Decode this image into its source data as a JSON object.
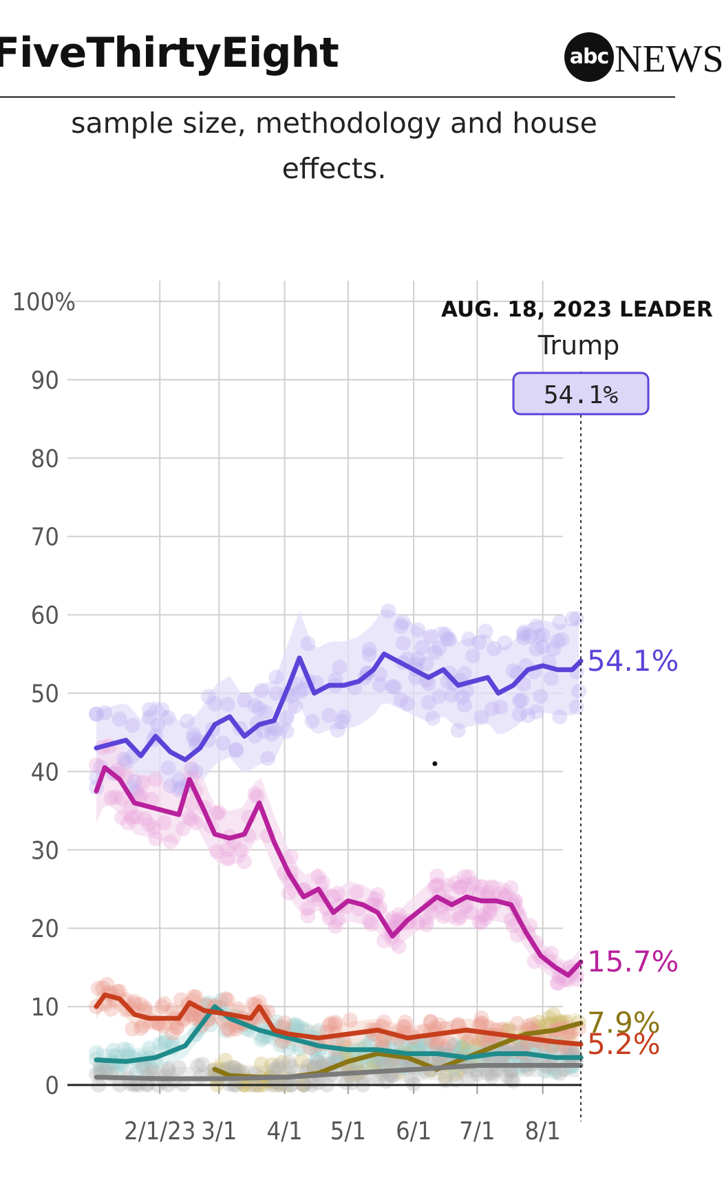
{
  "header": {
    "brand": "FiveThirtyEight",
    "logo_abc": "abc",
    "logo_news": "NEWS"
  },
  "description": {
    "line1": "sample size, methodology and house",
    "line2": "effects."
  },
  "leader": {
    "heading": "AUG. 18, 2023 LEADER",
    "name": "Trump",
    "value": "54.1%"
  },
  "chart_data": {
    "type": "line",
    "title": "",
    "xlabel": "",
    "ylabel": "",
    "x_range": [
      "2023-01-01",
      "2023-08-18"
    ],
    "ylim": [
      0,
      100
    ],
    "y_ticks": [
      {
        "value": 0,
        "label": "0"
      },
      {
        "value": 10,
        "label": "10"
      },
      {
        "value": 20,
        "label": "20"
      },
      {
        "value": 30,
        "label": "30"
      },
      {
        "value": 40,
        "label": "40"
      },
      {
        "value": 50,
        "label": "50"
      },
      {
        "value": 60,
        "label": "60"
      },
      {
        "value": 70,
        "label": "70"
      },
      {
        "value": 80,
        "label": "80"
      },
      {
        "value": 90,
        "label": "90"
      },
      {
        "value": 100,
        "label": "100%"
      }
    ],
    "x_ticks": [
      {
        "date": "2023-01-31",
        "label": "2/1/23"
      },
      {
        "date": "2023-02-28",
        "label": "3/1"
      },
      {
        "date": "2023-03-31",
        "label": "4/1"
      },
      {
        "date": "2023-04-30",
        "label": "5/1"
      },
      {
        "date": "2023-05-31",
        "label": "6/1"
      },
      {
        "date": "2023-06-30",
        "label": "7/1"
      },
      {
        "date": "2023-07-31",
        "label": "8/1"
      }
    ],
    "grid": true,
    "current_date": "2023-08-18",
    "series": [
      {
        "color": "#5b43d8",
        "band_color": "#e4dffa",
        "dot_color": "#b9aef0",
        "end_label": "54.1%",
        "points": [
          [
            "2023-01-01",
            43
          ],
          [
            "2023-01-08",
            43.5
          ],
          [
            "2023-01-15",
            44
          ],
          [
            "2023-01-22",
            42
          ],
          [
            "2023-01-29",
            44.5
          ],
          [
            "2023-02-05",
            42.5
          ],
          [
            "2023-02-12",
            41.5
          ],
          [
            "2023-02-19",
            43
          ],
          [
            "2023-02-26",
            46
          ],
          [
            "2023-03-05",
            47
          ],
          [
            "2023-03-12",
            44.5
          ],
          [
            "2023-03-19",
            46
          ],
          [
            "2023-03-26",
            46.5
          ],
          [
            "2023-04-02",
            51
          ],
          [
            "2023-04-07",
            54.5
          ],
          [
            "2023-04-14",
            50
          ],
          [
            "2023-04-21",
            51
          ],
          [
            "2023-04-28",
            51
          ],
          [
            "2023-05-05",
            51.5
          ],
          [
            "2023-05-12",
            53
          ],
          [
            "2023-05-17",
            55
          ],
          [
            "2023-05-24",
            54
          ],
          [
            "2023-05-31",
            53
          ],
          [
            "2023-06-07",
            52
          ],
          [
            "2023-06-14",
            53
          ],
          [
            "2023-06-21",
            51
          ],
          [
            "2023-06-28",
            51.5
          ],
          [
            "2023-07-05",
            52
          ],
          [
            "2023-07-10",
            50
          ],
          [
            "2023-07-17",
            51
          ],
          [
            "2023-07-24",
            53
          ],
          [
            "2023-07-31",
            53.5
          ],
          [
            "2023-08-07",
            53
          ],
          [
            "2023-08-14",
            53
          ],
          [
            "2023-08-18",
            54.1
          ]
        ]
      },
      {
        "color": "#b8219c",
        "band_color": "#f5dcef",
        "dot_color": "#eaa6dc",
        "end_label": "15.7%",
        "points": [
          [
            "2023-01-01",
            37.5
          ],
          [
            "2023-01-05",
            40.5
          ],
          [
            "2023-01-12",
            39
          ],
          [
            "2023-01-19",
            36
          ],
          [
            "2023-01-26",
            35.5
          ],
          [
            "2023-02-02",
            35
          ],
          [
            "2023-02-09",
            34.5
          ],
          [
            "2023-02-14",
            39
          ],
          [
            "2023-02-21",
            35
          ],
          [
            "2023-02-26",
            32
          ],
          [
            "2023-03-05",
            31.5
          ],
          [
            "2023-03-12",
            32
          ],
          [
            "2023-03-19",
            36
          ],
          [
            "2023-03-26",
            31
          ],
          [
            "2023-04-02",
            27
          ],
          [
            "2023-04-09",
            24
          ],
          [
            "2023-04-16",
            25
          ],
          [
            "2023-04-23",
            22
          ],
          [
            "2023-04-30",
            23.5
          ],
          [
            "2023-05-07",
            23
          ],
          [
            "2023-05-14",
            22
          ],
          [
            "2023-05-21",
            19
          ],
          [
            "2023-05-28",
            21
          ],
          [
            "2023-06-04",
            22.5
          ],
          [
            "2023-06-11",
            24
          ],
          [
            "2023-06-18",
            23
          ],
          [
            "2023-06-25",
            24
          ],
          [
            "2023-07-02",
            23.5
          ],
          [
            "2023-07-09",
            23.5
          ],
          [
            "2023-07-16",
            23
          ],
          [
            "2023-07-23",
            19.5
          ],
          [
            "2023-07-30",
            16.5
          ],
          [
            "2023-08-06",
            15
          ],
          [
            "2023-08-12",
            14
          ],
          [
            "2023-08-18",
            15.7
          ]
        ]
      },
      {
        "color": "#8a7514",
        "band_color": "#f1ecd6",
        "dot_color": "#cbb767",
        "end_label": "7.9%",
        "points": [
          [
            "2023-02-26",
            2
          ],
          [
            "2023-03-05",
            1.2
          ],
          [
            "2023-03-19",
            1
          ],
          [
            "2023-04-02",
            1
          ],
          [
            "2023-04-16",
            1.5
          ],
          [
            "2023-04-30",
            3
          ],
          [
            "2023-05-14",
            4
          ],
          [
            "2023-05-28",
            3.5
          ],
          [
            "2023-06-11",
            2
          ],
          [
            "2023-06-25",
            3.5
          ],
          [
            "2023-07-09",
            5
          ],
          [
            "2023-07-23",
            6.5
          ],
          [
            "2023-08-06",
            7
          ],
          [
            "2023-08-18",
            7.9
          ]
        ]
      },
      {
        "color": "#1f8b8b",
        "band_color": "#d9eeee",
        "dot_color": "#9fd2d2",
        "points": [
          [
            "2023-01-01",
            3.2
          ],
          [
            "2023-01-15",
            3
          ],
          [
            "2023-01-29",
            3.5
          ],
          [
            "2023-02-12",
            5
          ],
          [
            "2023-02-19",
            7.5
          ],
          [
            "2023-02-26",
            10
          ],
          [
            "2023-03-05",
            8.5
          ],
          [
            "2023-03-19",
            7
          ],
          [
            "2023-04-02",
            6
          ],
          [
            "2023-04-16",
            5
          ],
          [
            "2023-04-30",
            4.5
          ],
          [
            "2023-05-14",
            4.5
          ],
          [
            "2023-05-28",
            4
          ],
          [
            "2023-06-11",
            4
          ],
          [
            "2023-06-25",
            3.5
          ],
          [
            "2023-07-09",
            4
          ],
          [
            "2023-07-23",
            4
          ],
          [
            "2023-08-06",
            3.5
          ],
          [
            "2023-08-18",
            3.5
          ]
        ]
      },
      {
        "color": "#c63e1c",
        "band_color": "#f7ddd4",
        "dot_color": "#ec9f92",
        "end_label": "5.2%",
        "points": [
          [
            "2023-01-01",
            10
          ],
          [
            "2023-01-05",
            11.5
          ],
          [
            "2023-01-12",
            11
          ],
          [
            "2023-01-19",
            9
          ],
          [
            "2023-01-26",
            8.5
          ],
          [
            "2023-02-09",
            8.5
          ],
          [
            "2023-02-14",
            10.5
          ],
          [
            "2023-02-21",
            9.5
          ],
          [
            "2023-03-05",
            9
          ],
          [
            "2023-03-15",
            8.5
          ],
          [
            "2023-03-19",
            10
          ],
          [
            "2023-03-26",
            7
          ],
          [
            "2023-04-02",
            6.5
          ],
          [
            "2023-04-16",
            6
          ],
          [
            "2023-04-30",
            6.5
          ],
          [
            "2023-05-14",
            7
          ],
          [
            "2023-05-28",
            6
          ],
          [
            "2023-06-11",
            6.5
          ],
          [
            "2023-06-25",
            7
          ],
          [
            "2023-07-09",
            6.5
          ],
          [
            "2023-07-23",
            6
          ],
          [
            "2023-08-06",
            5.5
          ],
          [
            "2023-08-18",
            5.2
          ]
        ]
      },
      {
        "color": "#7a7a7a",
        "band_color": "#e8e8e8",
        "dot_color": "#b5b5b5",
        "points": [
          [
            "2023-01-01",
            1
          ],
          [
            "2023-02-01",
            0.8
          ],
          [
            "2023-03-01",
            0.8
          ],
          [
            "2023-04-01",
            1
          ],
          [
            "2023-05-01",
            1.5
          ],
          [
            "2023-06-01",
            2
          ],
          [
            "2023-07-01",
            2.5
          ],
          [
            "2023-08-01",
            2.5
          ],
          [
            "2023-08-18",
            2.5
          ]
        ]
      }
    ]
  },
  "annotation_dot": {
    "date": "2023-06-10",
    "value": 41
  }
}
